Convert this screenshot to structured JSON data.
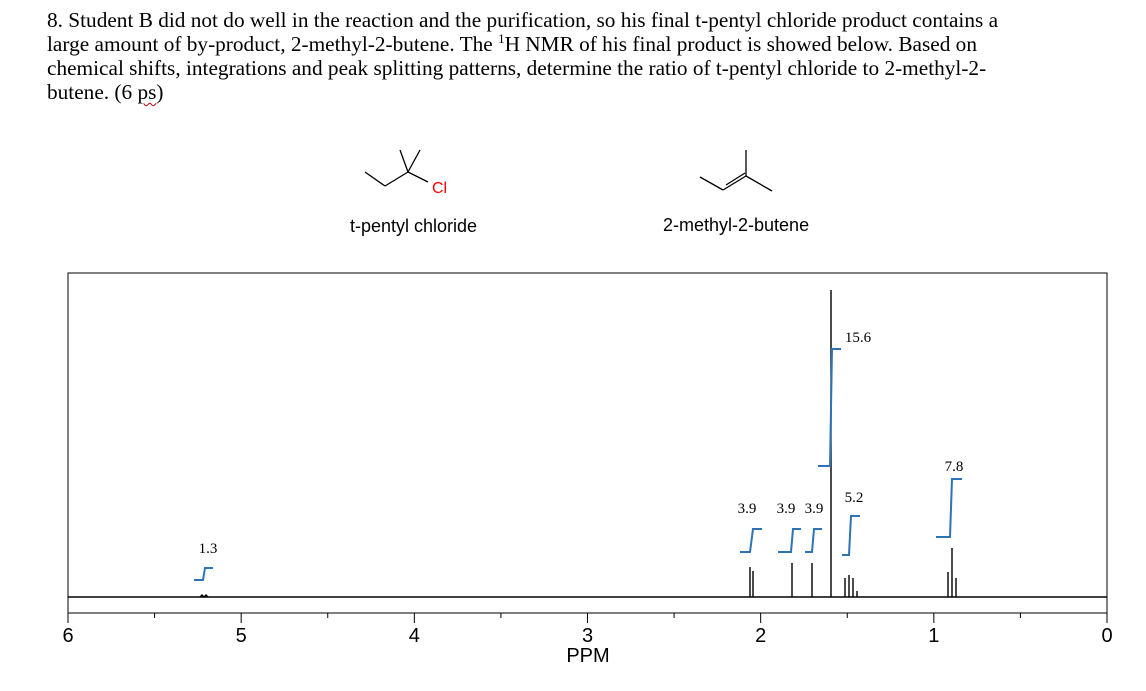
{
  "question": {
    "lines": [
      "8. Student B did not do well in the reaction and the purification, so his final t-pentyl chloride product contains a",
      "large amount of by-product, 2-methyl-2-butene. The ",
      "chemical shifts, integrations and peak splitting patterns, determine the ratio of t-pentyl chloride to 2-methyl-2-",
      "butene. (6 "
    ],
    "superscript": "1",
    "line2_rest": "H NMR of his final product is showed below. Based on",
    "points_word": "ps",
    "close_paren": ")"
  },
  "structures": {
    "left_label": "t-pentyl chloride",
    "left_atom": "Cl",
    "left_atom_color": "#ff0000",
    "right_label": "2-methyl-2-butene"
  },
  "spectrum": {
    "x_axis_label": "PPM",
    "x_ticks": [
      "6",
      "5",
      "4",
      "3",
      "2",
      "1",
      "0"
    ],
    "integrals": [
      "1.3",
      "3.9",
      "3.9",
      "3.9",
      "15.6",
      "5.2",
      "7.8"
    ],
    "integral_color": "#2e74b5",
    "peaks_ppm": [
      5.2,
      2.05,
      1.83,
      1.72,
      1.59,
      1.48,
      0.9
    ]
  }
}
